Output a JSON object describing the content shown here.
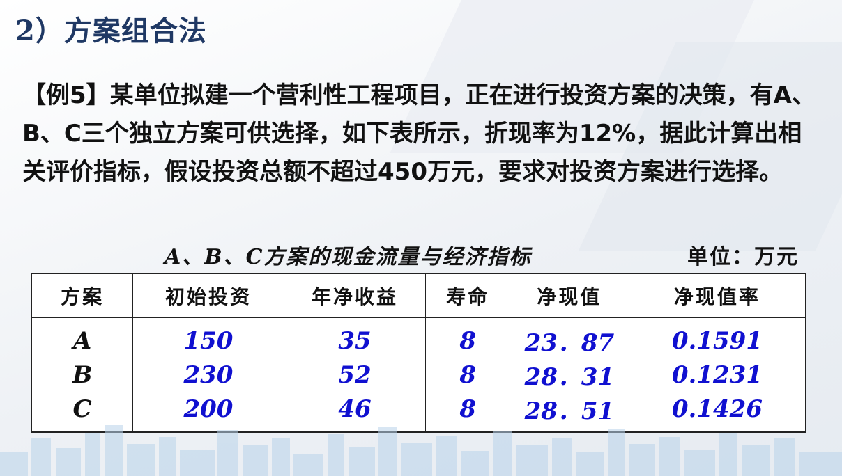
{
  "slide": {
    "title": "2）方案组合法",
    "problem_text": "【例5】某单位拟建一个营利性工程项目，正在进行投资方案的决策，有A、B、C三个独立方案可供选择，如下表所示，折现率为12%，据此计算出相关评价指标，假设投资总额不超过450万元，要求对投资方案进行选择。"
  },
  "table": {
    "caption": "A、B、C方案的现金流量与经济指标",
    "unit_label": "单位：万元",
    "headers": [
      "方案",
      "初始投资",
      "年净收益",
      "寿命",
      "净现值",
      "净现值率"
    ],
    "rows": [
      [
        "A",
        "150",
        "35",
        "8",
        "23．87",
        "0.1591"
      ],
      [
        "B",
        "230",
        "52",
        "8",
        "28．31",
        "0.1231"
      ],
      [
        "C",
        "200",
        "46",
        "8",
        "28．51",
        "0.1426"
      ]
    ]
  },
  "colors": {
    "title": "#1f3864",
    "values": "#1010d0",
    "skyline": "#b9d3ea"
  }
}
